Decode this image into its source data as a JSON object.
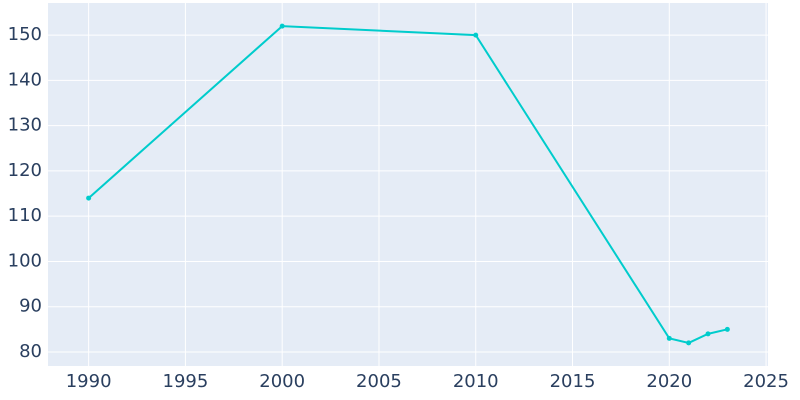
{
  "chart_data": {
    "type": "line",
    "x": [
      1990,
      2000,
      2010,
      2020,
      2021,
      2022,
      2023
    ],
    "series": [
      {
        "color": "#00cccc",
        "values": [
          114,
          152,
          150,
          83,
          82,
          84,
          85
        ]
      }
    ],
    "xlim": [
      1987.9,
      2025.1
    ],
    "xticks": [
      1990,
      1995,
      2000,
      2005,
      2010,
      2015,
      2020,
      2025
    ],
    "ylim": [
      76.9,
      157.1
    ],
    "yticks": [
      80,
      90,
      100,
      110,
      120,
      130,
      140,
      150
    ],
    "grid": true
  }
}
